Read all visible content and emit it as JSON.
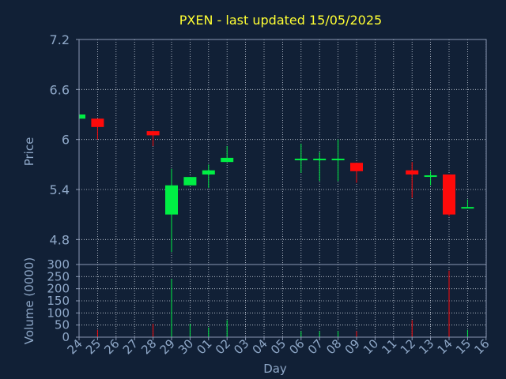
{
  "chart_data": {
    "type": "candlestick",
    "title": "PXEN - last updated 15/05/2025",
    "xlabel": "Day",
    "price_panel": {
      "ylabel": "Price",
      "yticks": [
        "4.8",
        "5.4",
        "6",
        "6.6",
        "7.2"
      ],
      "ylim": [
        4.5,
        7.2
      ]
    },
    "volume_panel": {
      "ylabel": "Volume (0000)",
      "yticks": [
        "0",
        "50",
        "100",
        "150",
        "200",
        "250",
        "300"
      ],
      "ylim": [
        0,
        300
      ]
    },
    "xticks": [
      "24",
      "25",
      "26",
      "27",
      "28",
      "29",
      "30",
      "01",
      "02",
      "03",
      "04",
      "05",
      "06",
      "07",
      "08",
      "09",
      "10",
      "11",
      "12",
      "13",
      "14",
      "15",
      "16"
    ],
    "grid": true,
    "candles": [
      {
        "day": "24",
        "open": 6.25,
        "close": 6.3,
        "high": 6.3,
        "low": 6.25,
        "volume": 0
      },
      {
        "day": "25",
        "open": 6.25,
        "close": 6.15,
        "high": 6.25,
        "low": 6.0,
        "volume": 30
      },
      {
        "day": "28",
        "open": 6.1,
        "close": 6.05,
        "high": 6.1,
        "low": 5.92,
        "volume": 55
      },
      {
        "day": "29",
        "open": 5.1,
        "close": 5.45,
        "high": 5.65,
        "low": 4.65,
        "volume": 240
      },
      {
        "day": "30",
        "open": 5.45,
        "close": 5.55,
        "high": 5.55,
        "low": 5.45,
        "volume": 55
      },
      {
        "day": "01",
        "open": 5.58,
        "close": 5.63,
        "high": 5.7,
        "low": 5.42,
        "volume": 40
      },
      {
        "day": "02",
        "open": 5.73,
        "close": 5.78,
        "high": 5.92,
        "low": 5.73,
        "volume": 70
      },
      {
        "day": "06",
        "open": 5.76,
        "close": 5.77,
        "high": 5.95,
        "low": 5.6,
        "volume": 25
      },
      {
        "day": "07",
        "open": 5.76,
        "close": 5.77,
        "high": 5.85,
        "low": 5.5,
        "volume": 25
      },
      {
        "day": "08",
        "open": 5.76,
        "close": 5.77,
        "high": 6.0,
        "low": 5.5,
        "volume": 25
      },
      {
        "day": "09",
        "open": 5.72,
        "close": 5.62,
        "high": 5.72,
        "low": 5.48,
        "volume": 25
      },
      {
        "day": "12",
        "open": 5.63,
        "close": 5.58,
        "high": 5.73,
        "low": 5.3,
        "volume": 70
      },
      {
        "day": "13",
        "open": 5.56,
        "close": 5.57,
        "high": 5.62,
        "low": 5.45,
        "volume": 0
      },
      {
        "day": "14",
        "open": 5.58,
        "close": 5.1,
        "high": 5.58,
        "low": 5.08,
        "volume": 275
      },
      {
        "day": "15",
        "open": 5.18,
        "close": 5.19,
        "high": 5.28,
        "low": 5.18,
        "volume": 30
      }
    ],
    "colors": {
      "background": "#112036",
      "plot_border": "#8a98b4",
      "grid": "#c8d0dc",
      "axis_text": "#8fa8c8",
      "title": "#ffff33",
      "up": "#00ee44",
      "down": "#ff0a0a"
    }
  }
}
